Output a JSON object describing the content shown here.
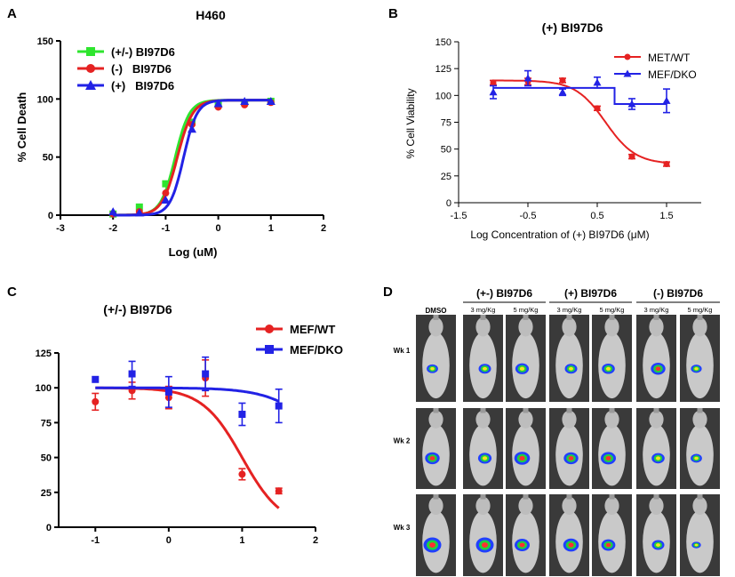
{
  "panel_letters": [
    "A",
    "B",
    "C",
    "D"
  ],
  "chart_data": [
    {
      "id": "A",
      "type": "line",
      "title": "H460",
      "xlabel": "Log (uM)",
      "ylabel": "% Cell Death",
      "xlim": [
        -3,
        2
      ],
      "ylim": [
        0,
        150
      ],
      "xticks": [
        -3,
        -2,
        -1,
        0,
        1,
        2
      ],
      "yticks": [
        0,
        50,
        100,
        150
      ],
      "legend_position": "top-left",
      "series": [
        {
          "name": "(+/-) BI97D6",
          "color": "#2ee52e",
          "marker": "square",
          "logIC50": -0.82,
          "hill": 3.2,
          "bottom": 0,
          "top": 99,
          "points": [
            [
              -2,
              1
            ],
            [
              -1.5,
              7
            ],
            [
              -1,
              27
            ],
            [
              -0.5,
              80
            ],
            [
              0,
              95
            ],
            [
              0.5,
              97
            ],
            [
              1,
              98
            ]
          ]
        },
        {
          "name": "(-)   BI97D6",
          "color": "#e52222",
          "marker": "circle",
          "logIC50": -0.78,
          "hill": 3.0,
          "bottom": 0,
          "top": 99,
          "points": [
            [
              -2,
              1
            ],
            [
              -1.5,
              3
            ],
            [
              -1,
              19
            ],
            [
              -0.5,
              78
            ],
            [
              0,
              93
            ],
            [
              0.5,
              95
            ],
            [
              1,
              97
            ]
          ]
        },
        {
          "name": "(+)   BI97D6",
          "color": "#2222e5",
          "marker": "triangle",
          "logIC50": -0.66,
          "hill": 3.4,
          "bottom": 0,
          "top": 99,
          "points": [
            [
              -2,
              3
            ],
            [
              -1.5,
              2
            ],
            [
              -1,
              13
            ],
            [
              -0.5,
              74
            ],
            [
              0,
              96
            ],
            [
              0.5,
              98
            ],
            [
              1,
              98
            ]
          ]
        }
      ]
    },
    {
      "id": "B",
      "type": "line",
      "title": "(+) BI97D6",
      "xlabel": "Log Concentration of (+) BI97D6 (μM)",
      "ylabel": "% Cell Viability",
      "xlim": [
        -1.5,
        2
      ],
      "ylim": [
        0,
        150
      ],
      "xticks": [
        -1.5,
        -0.5,
        0.5,
        1.5
      ],
      "yticks": [
        0,
        25,
        50,
        75,
        100,
        125,
        150
      ],
      "legend_position": "top-right",
      "series": [
        {
          "name": "MET/WT",
          "color": "#e52222",
          "marker": "circle",
          "curve": "sigmoid",
          "logIC50": 0.62,
          "hill": 2.0,
          "bottom": 36,
          "top": 114,
          "points": [
            [
              -1,
              112,
              2
            ],
            [
              -0.5,
              113,
              3
            ],
            [
              0,
              114,
              2
            ],
            [
              0.5,
              88,
              2
            ],
            [
              1,
              43,
              2
            ],
            [
              1.5,
              36,
              2
            ]
          ]
        },
        {
          "name": "MEF/DKO",
          "color": "#2222e5",
          "marker": "triangle",
          "curve": "step",
          "stepAt": 0.75,
          "before": 107,
          "after": 92,
          "points": [
            [
              -1,
              103,
              6
            ],
            [
              -0.5,
              116,
              7
            ],
            [
              0,
              103,
              3
            ],
            [
              0.5,
              112,
              5
            ],
            [
              1,
              92,
              5
            ],
            [
              1.5,
              95,
              11
            ]
          ]
        }
      ]
    },
    {
      "id": "C",
      "type": "line",
      "title": "(+/-) BI97D6",
      "xlabel": "",
      "ylabel": "",
      "xlim": [
        -1.5,
        2
      ],
      "ylim": [
        0,
        125
      ],
      "xticks": [
        -1,
        0,
        1,
        2
      ],
      "yticks": [
        0,
        25,
        50,
        75,
        100,
        125
      ],
      "legend_position": "top-right",
      "series": [
        {
          "name": "MEF/WT",
          "color": "#e52222",
          "marker": "circle",
          "curve": "sigmoid",
          "logIC50": 1.0,
          "hill": 1.6,
          "bottom": 0,
          "top": 100,
          "points": [
            [
              -1,
              90,
              6
            ],
            [
              -0.5,
              98,
              6
            ],
            [
              0,
              93,
              8
            ],
            [
              0.5,
              107,
              13
            ],
            [
              1,
              38,
              4
            ],
            [
              1.5,
              26,
              2
            ]
          ]
        },
        {
          "name": "MEF/DKO",
          "color": "#2222e5",
          "marker": "square",
          "curve": "sigmoid",
          "logIC50": 2.05,
          "hill": 1.3,
          "bottom": 40,
          "top": 100,
          "points": [
            [
              -1,
              106,
              0
            ],
            [
              -0.5,
              110,
              9
            ],
            [
              0,
              97,
              11
            ],
            [
              0.5,
              110,
              12
            ],
            [
              1,
              81,
              8
            ],
            [
              1.5,
              87,
              12
            ]
          ]
        }
      ]
    }
  ],
  "panel_d": {
    "groups": [
      {
        "label": "(+-) BI97D6"
      },
      {
        "label": "(+) BI97D6"
      },
      {
        "label": "(-) BI97D6"
      }
    ],
    "columns": [
      {
        "header": "DMSO"
      },
      {
        "header": "3 mg/Kg"
      },
      {
        "header": "5 mg/Kg"
      },
      {
        "header": "3 mg/Kg"
      },
      {
        "header": "5 mg/Kg"
      },
      {
        "header": "3 mg/Kg"
      },
      {
        "header": "5 mg/Kg"
      }
    ],
    "rows": [
      {
        "label": "Wk 1",
        "signal": [
          0.4,
          0.5,
          0.6,
          0.5,
          0.55,
          0.7,
          0.35
        ]
      },
      {
        "label": "Wk 2",
        "signal": [
          0.7,
          0.6,
          0.8,
          0.7,
          0.75,
          0.55,
          0.4
        ]
      },
      {
        "label": "Wk 3",
        "signal": [
          1.0,
          1.0,
          0.75,
          0.8,
          0.65,
          0.5,
          0.2
        ]
      }
    ]
  }
}
